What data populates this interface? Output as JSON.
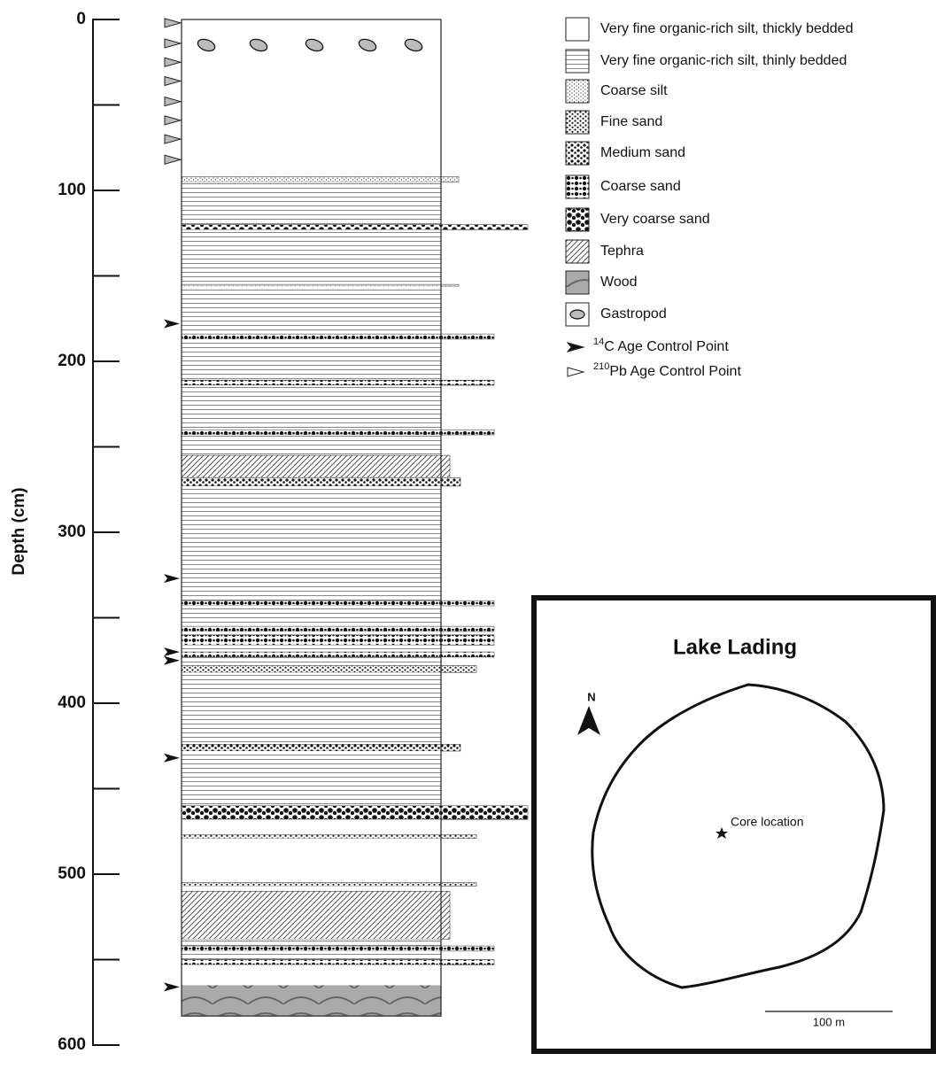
{
  "depth_axis": {
    "label": "Depth (cm)",
    "lim": [
      0,
      600
    ],
    "ticks": [
      0,
      100,
      200,
      300,
      400,
      500,
      600
    ],
    "minor_ticks": [
      50,
      150,
      250,
      350,
      450,
      550
    ]
  },
  "legend": [
    "Very fine organic-rich silt, thickly bedded",
    "Very fine organic-rich silt, thinly bedded",
    "Coarse silt",
    "Fine sand",
    "Medium sand",
    "Coarse sand",
    "Very coarse sand",
    "Tephra",
    "Wood",
    "Gastropod"
  ],
  "age_control_legend": [
    {
      "sup": "14",
      "text": "C Age Control Point"
    },
    {
      "sup": "210",
      "text": "Pb Age Control Point"
    }
  ],
  "layers": [
    {
      "unit": 0,
      "top": 0,
      "bottom": 92
    },
    {
      "unit": 2,
      "top": 92,
      "bottom": 95
    },
    {
      "unit": 1,
      "top": 95,
      "bottom": 120
    },
    {
      "unit": 6,
      "top": 120,
      "bottom": 123
    },
    {
      "unit": 1,
      "top": 123,
      "bottom": 155
    },
    {
      "unit": 2,
      "top": 155,
      "bottom": 156
    },
    {
      "unit": 1,
      "top": 156,
      "bottom": 184
    },
    {
      "unit": 5,
      "top": 184,
      "bottom": 187
    },
    {
      "unit": 1,
      "top": 187,
      "bottom": 211
    },
    {
      "unit": 5,
      "top": 211,
      "bottom": 214
    },
    {
      "unit": 1,
      "top": 214,
      "bottom": 240
    },
    {
      "unit": 5,
      "top": 240,
      "bottom": 243
    },
    {
      "unit": 1,
      "top": 243,
      "bottom": 255
    },
    {
      "unit": 7,
      "top": 255,
      "bottom": 268
    },
    {
      "unit": 4,
      "top": 268,
      "bottom": 273
    },
    {
      "unit": 1,
      "top": 273,
      "bottom": 340
    },
    {
      "unit": 5,
      "top": 340,
      "bottom": 343
    },
    {
      "unit": 1,
      "top": 343,
      "bottom": 355
    },
    {
      "unit": 5,
      "top": 355,
      "bottom": 358
    },
    {
      "unit": 1,
      "top": 358,
      "bottom": 360
    },
    {
      "unit": 5,
      "top": 360,
      "bottom": 366
    },
    {
      "unit": 1,
      "top": 366,
      "bottom": 370
    },
    {
      "unit": 5,
      "top": 370,
      "bottom": 373
    },
    {
      "unit": 1,
      "top": 373,
      "bottom": 378
    },
    {
      "unit": 3,
      "top": 378,
      "bottom": 382
    },
    {
      "unit": 1,
      "top": 382,
      "bottom": 424
    },
    {
      "unit": 4,
      "top": 424,
      "bottom": 428
    },
    {
      "unit": 1,
      "top": 428,
      "bottom": 460
    },
    {
      "unit": 6,
      "top": 460,
      "bottom": 468
    },
    {
      "unit": 0,
      "top": 468,
      "bottom": 477
    },
    {
      "unit": 3,
      "top": 477,
      "bottom": 479
    },
    {
      "unit": 0,
      "top": 479,
      "bottom": 505
    },
    {
      "unit": 3,
      "top": 505,
      "bottom": 507
    },
    {
      "unit": 0,
      "top": 507,
      "bottom": 510
    },
    {
      "unit": 7,
      "top": 510,
      "bottom": 538
    },
    {
      "unit": 1,
      "top": 538,
      "bottom": 542
    },
    {
      "unit": 5,
      "top": 542,
      "bottom": 545
    },
    {
      "unit": 1,
      "top": 545,
      "bottom": 550
    },
    {
      "unit": 5,
      "top": 550,
      "bottom": 553
    },
    {
      "unit": 0,
      "top": 553,
      "bottom": 565
    },
    {
      "unit": 8,
      "top": 565,
      "bottom": 583
    }
  ],
  "gastropod_depth": 15,
  "c14_points": [
    178,
    327,
    370,
    375,
    432,
    566
  ],
  "pb210_points": [
    2,
    14,
    25,
    36,
    48,
    59,
    70,
    82
  ],
  "map": {
    "title": "Lake Lading",
    "north": "N",
    "core": "Core location",
    "scale": "100 m"
  }
}
